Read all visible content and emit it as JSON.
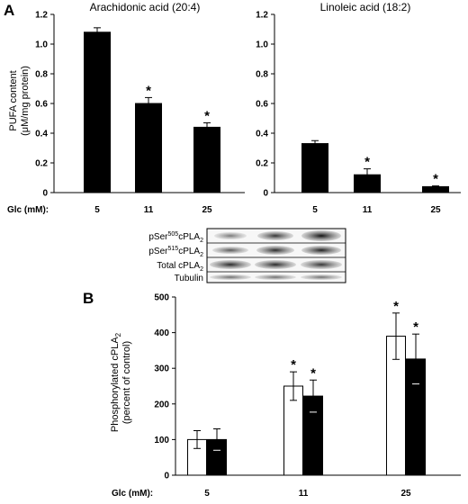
{
  "figure": {
    "panel_a_letter": "A",
    "panel_b_letter": "B",
    "glc_label_a": "Glc (mM):",
    "glc_label_b": "Glc (mM):",
    "blot": {
      "labels": [
        {
          "main": "pSer",
          "sup": "505",
          "rest": "cPLA",
          "sub": "2"
        },
        {
          "main": "pSer",
          "sup": "515",
          "rest": "cPLA",
          "sub": "2"
        },
        {
          "main": "Total  cPLA",
          "sup": "",
          "rest": "",
          "sub": "2"
        },
        {
          "main": "Tubulin",
          "sup": "",
          "rest": "",
          "sub": ""
        }
      ]
    }
  },
  "chart_data": [
    {
      "type": "bar",
      "title": "Arachidonic acid (20:4)",
      "ylabel_line1": "PUFA content",
      "ylabel_line2": "(μM/mg protein)",
      "categories": [
        "5",
        "11",
        "25"
      ],
      "series": [
        {
          "values": [
            1.08,
            0.6,
            0.44
          ],
          "errors": [
            0.03,
            0.04,
            0.03
          ],
          "color": "#000000"
        }
      ],
      "significance": [
        "",
        "*",
        "*"
      ],
      "ylim": [
        0,
        1.2
      ],
      "yticks": [
        "0",
        "0.2",
        "0.4",
        "0.6",
        "0.8",
        "1.0",
        "1.2"
      ]
    },
    {
      "type": "bar",
      "title": "Linoleic acid (18:2)",
      "categories": [
        "5",
        "11",
        "25"
      ],
      "series": [
        {
          "values": [
            0.33,
            0.12,
            0.04
          ],
          "errors": [
            0.02,
            0.04,
            0.005
          ],
          "color": "#000000"
        }
      ],
      "significance": [
        "",
        "*",
        "*"
      ],
      "ylim": [
        0,
        1.2
      ],
      "yticks": [
        "0",
        "0.2",
        "0.4",
        "0.6",
        "0.8",
        "1.0",
        "1.2"
      ]
    },
    {
      "type": "bar",
      "ylabel_line1": "Phosphorylated cPLA",
      "ylabel_sub": "2",
      "ylabel_line2": "(percent of control)",
      "categories": [
        "5",
        "11",
        "25"
      ],
      "series": [
        {
          "values": [
            100,
            250,
            390
          ],
          "errors": [
            25,
            40,
            65
          ],
          "color": "#ffffff"
        },
        {
          "values": [
            100,
            222,
            326
          ],
          "errors": [
            30,
            45,
            70
          ],
          "color": "#000000"
        }
      ],
      "significance": [
        [
          "",
          ""
        ],
        [
          "*",
          "*"
        ],
        [
          "*",
          "*"
        ]
      ],
      "ylim": [
        0,
        500
      ],
      "yticks": [
        "0",
        "100",
        "200",
        "300",
        "400",
        "500"
      ]
    }
  ]
}
